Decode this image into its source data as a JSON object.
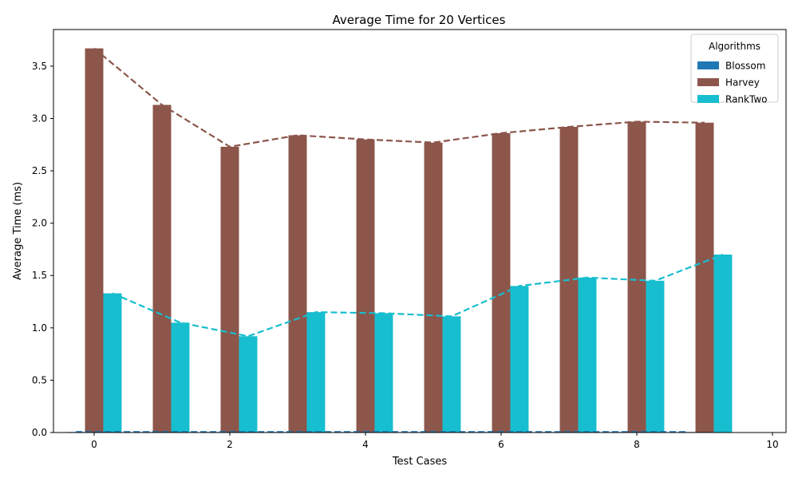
{
  "chart_data": {
    "type": "bar",
    "title": "Average Time for 20 Vertices",
    "xlabel": "Test Cases",
    "ylabel": "Average Time (ms)",
    "xlim": [
      -0.6,
      10.2
    ],
    "ylim": [
      0.0,
      3.85
    ],
    "xticks": [
      0,
      2,
      4,
      6,
      8,
      10
    ],
    "yticks": [
      0.0,
      0.5,
      1.0,
      1.5,
      2.0,
      2.5,
      3.0,
      3.5
    ],
    "x": [
      0,
      1,
      2,
      3,
      4,
      5,
      6,
      7,
      8,
      9
    ],
    "bar_width": 0.27,
    "grid": false,
    "legend_title": "Algorithms",
    "legend_position": "top-right",
    "trend_lines": "dashed",
    "series": [
      {
        "name": "Blossom",
        "color": "#1f77b4",
        "values": [
          0.005,
          0.005,
          0.005,
          0.005,
          0.005,
          0.005,
          0.005,
          0.005,
          0.005,
          0.005
        ]
      },
      {
        "name": "Harvey",
        "color": "#8c564b",
        "values": [
          3.67,
          3.13,
          2.73,
          2.84,
          2.8,
          2.77,
          2.86,
          2.92,
          2.97,
          2.96
        ]
      },
      {
        "name": "RankTwo",
        "color": "#17becf",
        "values": [
          1.33,
          1.05,
          0.92,
          1.15,
          1.14,
          1.11,
          1.4,
          1.48,
          1.45,
          1.7
        ]
      }
    ]
  }
}
